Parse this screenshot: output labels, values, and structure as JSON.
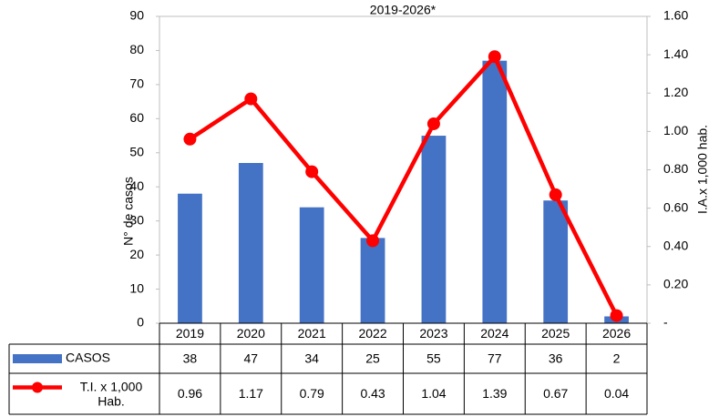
{
  "chart_data": {
    "type": "bar_line",
    "title": "2019-2026*",
    "y_label": "N° de casos",
    "y2_label": "I.A.x 1,000 hab.",
    "categories": [
      "2019",
      "2020",
      "2021",
      "2022",
      "2023",
      "2024",
      "2025",
      "2026"
    ],
    "series": [
      {
        "name": "CASOS",
        "type": "bar",
        "color": "#4472c4",
        "values": [
          38,
          47,
          34,
          25,
          55,
          77,
          36,
          2
        ]
      },
      {
        "name": "T.I. x 1,000 Hab.",
        "type": "line",
        "axis": "y2",
        "color": "#ff0000",
        "values": [
          0.96,
          1.17,
          0.79,
          0.43,
          1.04,
          1.39,
          0.67,
          0.04
        ]
      }
    ],
    "ylim": [
      0,
      90
    ],
    "yticks": [
      0,
      10,
      20,
      30,
      40,
      50,
      60,
      70,
      80,
      90
    ],
    "y2lim": [
      0,
      1.6
    ],
    "y2ticks": [
      {
        "value": 0,
        "label": "-"
      },
      {
        "value": 0.2,
        "label": "0.20"
      },
      {
        "value": 0.4,
        "label": "0.40"
      },
      {
        "value": 0.6,
        "label": "0.60"
      },
      {
        "value": 0.8,
        "label": "0.80"
      },
      {
        "value": 1,
        "label": "1.00"
      },
      {
        "value": 1.2,
        "label": "1.20"
      },
      {
        "value": 1.4,
        "label": "1.40"
      },
      {
        "value": 1.6,
        "label": "1.60"
      }
    ],
    "grid": false
  }
}
